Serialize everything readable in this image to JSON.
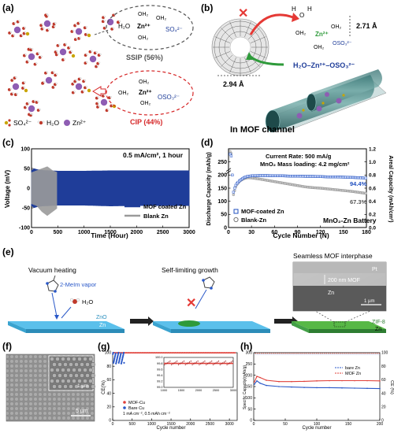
{
  "panels": {
    "a": {
      "letter": "(a)",
      "ssip": {
        "formula_left": "H₂O",
        "zn": "Zn²⁺",
        "h2o": "OH₂",
        "so4": "SO₄²⁻",
        "label": "SSIP (56%)"
      },
      "cip": {
        "zn": "Zn²⁺",
        "h2o": "OH₂",
        "oso3": "OSO₃²⁻",
        "label": "CIP (44%)"
      },
      "legend": {
        "so4": "SO₄²⁻",
        "h2o": "H₂O",
        "zn": "Zn²⁺"
      },
      "colors": {
        "ssip_ring": "#555555",
        "cip_ring": "#d62728",
        "zn": "#8e5db3",
        "so4": "#c9a400",
        "oxygen": "#c0392b"
      }
    },
    "b": {
      "letter": "(b)",
      "dist_top": "2.71 Å",
      "dist_pore": "2.94 Å",
      "cip_top": {
        "h": "H",
        "o": "O",
        "zn": "Zn²⁺",
        "h2o": "OH₂",
        "oso3": "OSO₃²⁻"
      },
      "chain": "H₂O–Zn²⁺–OSO₃²⁻",
      "caption": "In MOF channel"
    },
    "c": {
      "letter": "(c)",
      "note": "0.5 mA/cm², 1 hour",
      "ylabel": "Voltage (mV)",
      "xlabel": "Time (Hour)",
      "legend": [
        "MOF coated Zn",
        "Blank Zn"
      ]
    },
    "d": {
      "letter": "(d)",
      "note1": "Current Rate: 500 mA/g",
      "note2": "MnO₂ Mass loading: 4.2 mg/cm²",
      "ylabel_left": "Discharge Capacity (mAh/g)",
      "ylabel_right": "Areal Capacity (mAh/cm²)",
      "xlabel": "Cycle Number (N)",
      "label_mof": "94.4%",
      "label_blank": "67.3%",
      "legend": [
        "MOF-coated Zn",
        "Blank-Zn"
      ],
      "caption": "MnO₂-Zn Battery"
    },
    "e": {
      "letter": "(e)",
      "step1": "Vacuum heating",
      "vapor": "2-MeIm vapor",
      "water": "H₂O",
      "zno": "ZnO",
      "zn": "Zn",
      "step2": "Self-limiting growth",
      "step3": "Seamless MOF interphase",
      "zif": "ZIF-8",
      "zn3": "Zn",
      "inset_pt": "Pt",
      "inset_mof": "200 nm MOF",
      "inset_zn": "Zn",
      "inset_scale": "1 µm"
    },
    "f": {
      "letter": "(f)",
      "inset_scale": "1 µm",
      "scale": "5 µm"
    },
    "g": {
      "letter": "(g)",
      "ylabel": "CE(%)",
      "xlabel": "Cycle number",
      "legend": [
        "MOF-Cu",
        "Bare Cu"
      ],
      "note": "1 mA cm⁻², 0.5 mAh cm⁻²"
    },
    "h": {
      "letter": "(h)",
      "ylabel_left": "Specific Capacity(mAh/g)",
      "ylabel_right": "CE (%)",
      "xlabel": "Cycle number",
      "legend": [
        "bare Zn",
        "MOF Zn"
      ]
    }
  },
  "chart_data": [
    {
      "panel": "c",
      "type": "line",
      "xlabel": "Time (Hour)",
      "ylabel": "Voltage (mV)",
      "xlim": [
        0,
        3000
      ],
      "ylim": [
        -100,
        100
      ],
      "x_ticks": [
        0,
        500,
        1000,
        1500,
        2000,
        2500,
        3000
      ],
      "y_ticks": [
        -100,
        -50,
        0,
        50,
        100
      ],
      "series": [
        {
          "name": "MOF coated Zn",
          "color": "#1f3d99",
          "envelope_x": [
            0,
            50,
            100,
            200,
            500,
            1000,
            1500,
            2000,
            2500,
            3000
          ],
          "upper": [
            45,
            50,
            48,
            46,
            44,
            44,
            45,
            45,
            45,
            45
          ],
          "lower": [
            -45,
            -50,
            -48,
            -46,
            -44,
            -44,
            -46,
            -45,
            -45,
            -45
          ]
        },
        {
          "name": "Blank Zn",
          "color": "#9a9a9a",
          "envelope_x": [
            0,
            100,
            200,
            300,
            400,
            500
          ],
          "upper": [
            40,
            45,
            50,
            55,
            45,
            40
          ],
          "lower": [
            -40,
            -45,
            -60,
            -70,
            -60,
            -50
          ]
        }
      ]
    },
    {
      "panel": "d",
      "type": "scatter",
      "xlabel": "Cycle Number (N)",
      "ylabel": "Discharge Capacity (mAh/g)",
      "xlim": [
        0,
        180
      ],
      "ylim": [
        0,
        300
      ],
      "y_right_lim": [
        0,
        1.2
      ],
      "x_ticks": [
        0,
        30,
        60,
        90,
        120,
        150,
        180
      ],
      "y_ticks": [
        0,
        50,
        100,
        150,
        200,
        250
      ],
      "y_right_ticks": [
        0.0,
        0.2,
        0.4,
        0.6,
        0.8,
        1.0,
        1.2
      ],
      "series": [
        {
          "name": "MOF-coated Zn",
          "color": "#1f4fbf",
          "x": [
            2,
            4,
            6,
            8,
            10,
            15,
            20,
            25,
            30,
            40,
            50,
            60,
            70,
            80,
            90,
            100,
            110,
            120,
            130,
            140,
            150,
            160,
            170,
            180
          ],
          "y": [
            280,
            270,
            130,
            150,
            165,
            180,
            190,
            195,
            197,
            198,
            198,
            197,
            197,
            196,
            196,
            195,
            195,
            194,
            193,
            193,
            192,
            191,
            190,
            188
          ]
        },
        {
          "name": "Blank-Zn",
          "color": "#777777",
          "x": [
            2,
            4,
            6,
            8,
            10,
            15,
            20,
            25,
            30,
            40,
            50,
            60,
            70,
            80,
            90,
            100,
            110,
            120,
            130,
            140,
            150,
            160,
            170,
            180
          ],
          "y": [
            290,
            280,
            120,
            140,
            160,
            178,
            186,
            190,
            189,
            185,
            180,
            175,
            170,
            165,
            160,
            155,
            152,
            150,
            147,
            144,
            141,
            138,
            134,
            130
          ]
        }
      ]
    },
    {
      "panel": "g",
      "type": "scatter",
      "xlabel": "Cycle number",
      "ylabel": "CE(%)",
      "xlim": [
        0,
        3200
      ],
      "ylim": [
        0,
        100
      ],
      "x_ticks": [
        0,
        500,
        1000,
        1500,
        2000,
        2500,
        3000
      ],
      "y_ticks": [
        0,
        20,
        40,
        60,
        80,
        100
      ],
      "inset": {
        "xlim": [
          1000,
          3000
        ],
        "ylim": [
          99.0,
          100.0
        ],
        "x_ticks": [
          1000,
          1500,
          2000,
          2500,
          3000
        ],
        "y_ticks": [
          99.0,
          99.2,
          99.4,
          99.6,
          99.8,
          100.0
        ]
      },
      "series": [
        {
          "name": "MOF-Cu",
          "color": "#e0403a",
          "value": 99.8
        },
        {
          "name": "Bare Cu",
          "color": "#2a58c8",
          "value": 90
        }
      ]
    },
    {
      "panel": "h",
      "type": "line",
      "xlabel": "Cycle number",
      "ylabel": "Specific Capacity(mAh/g)",
      "xlim": [
        0,
        200
      ],
      "ylim": [
        0,
        300
      ],
      "y_right_lim": [
        0,
        100
      ],
      "x_ticks": [
        0,
        50,
        100,
        150,
        200
      ],
      "y_ticks": [
        0,
        50,
        100,
        150,
        200,
        250,
        300
      ],
      "y_right_ticks": [
        0,
        20,
        40,
        60,
        80,
        100
      ],
      "series": [
        {
          "name": "bare Zn",
          "color": "#2a58c8",
          "x": [
            1,
            5,
            10,
            20,
            40,
            60,
            80,
            100,
            120,
            140,
            160,
            180,
            200
          ],
          "y": [
            160,
            175,
            165,
            155,
            150,
            148,
            146,
            145,
            145,
            144,
            143,
            142,
            141
          ]
        },
        {
          "name": "MOF Zn",
          "color": "#e0403a",
          "x": [
            1,
            5,
            10,
            20,
            40,
            60,
            80,
            100,
            120,
            140,
            160,
            180,
            200
          ],
          "y": [
            170,
            195,
            190,
            178,
            172,
            172,
            173,
            175,
            176,
            176,
            176,
            176,
            175
          ]
        }
      ]
    }
  ]
}
